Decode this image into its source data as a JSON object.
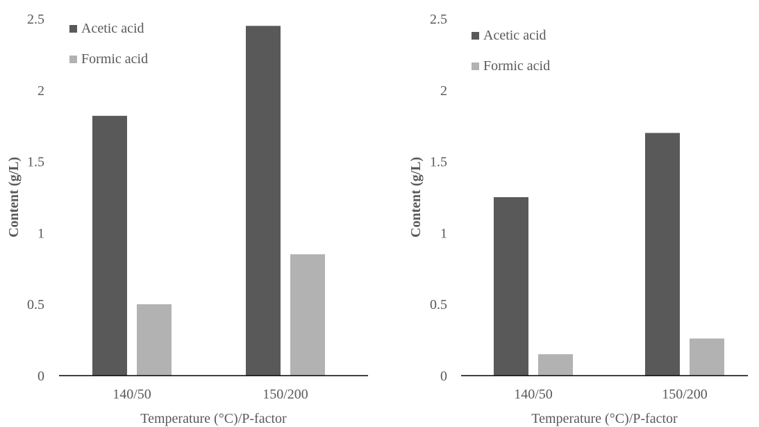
{
  "chart_data": [
    {
      "type": "bar",
      "categories": [
        "140/50",
        "150/200"
      ],
      "series": [
        {
          "name": "Acetic acid",
          "values": [
            1.82,
            2.45
          ]
        },
        {
          "name": "Formic acid",
          "values": [
            0.5,
            0.85
          ]
        }
      ],
      "xlabel": "Temperature (°C)/P-factor",
      "ylabel": "Content (g/L)",
      "ylim": [
        0,
        2.5
      ],
      "yticks": [
        "0",
        "0.5",
        "1",
        "1.5",
        "2",
        "2.5"
      ],
      "grid": false,
      "legend": "top-left",
      "colors": {
        "Acetic acid": "#595959",
        "Formic acid": "#b2b2b2"
      }
    },
    {
      "type": "bar",
      "categories": [
        "140/50",
        "150/200"
      ],
      "series": [
        {
          "name": "Acetic acid",
          "values": [
            1.25,
            1.7
          ]
        },
        {
          "name": "Formic acid",
          "values": [
            0.15,
            0.26
          ]
        }
      ],
      "xlabel": "Temperature (°C)/P-factor",
      "ylabel": "Content (g/L)",
      "ylim": [
        0,
        2.5
      ],
      "yticks": [
        "0",
        "0.5",
        "1",
        "1.5",
        "2",
        "2.5"
      ],
      "grid": false,
      "legend": "top-left",
      "colors": {
        "Acetic acid": "#595959",
        "Formic acid": "#b2b2b2"
      }
    }
  ]
}
